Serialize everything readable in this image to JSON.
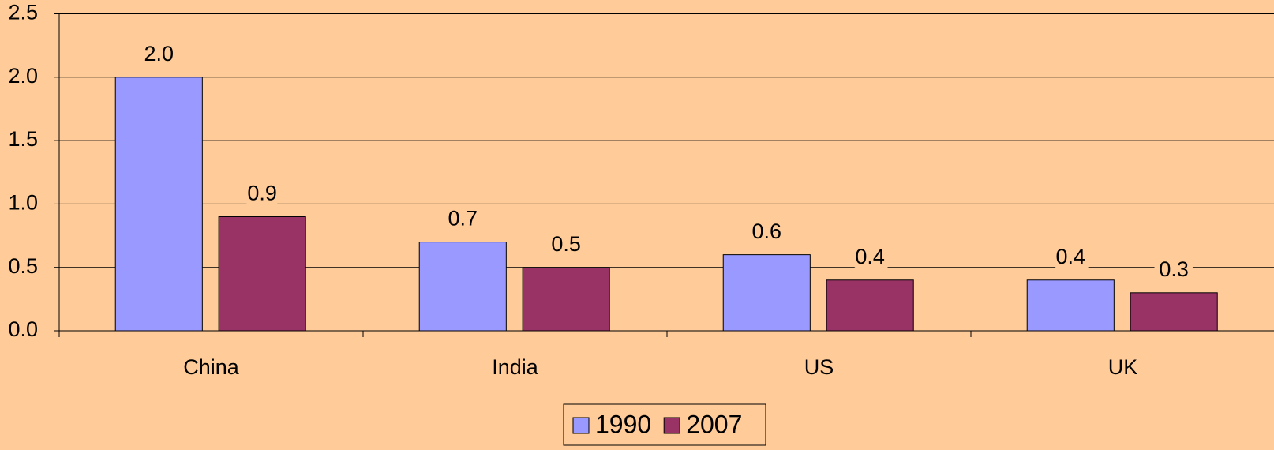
{
  "chart_data": {
    "type": "bar",
    "categories": [
      "China",
      "India",
      "US",
      "UK"
    ],
    "series": [
      {
        "name": "1990",
        "color": "#9999ff",
        "values": [
          2.0,
          0.7,
          0.6,
          0.4
        ],
        "value_labels": [
          "2.0",
          "0.7",
          "0.6",
          "0.4"
        ]
      },
      {
        "name": "2007",
        "color": "#993366",
        "values": [
          0.9,
          0.5,
          0.4,
          0.3
        ],
        "value_labels": [
          "0.9",
          "0.5",
          "0.4",
          "0.3"
        ]
      }
    ],
    "ylim": [
      0,
      2.5
    ],
    "yticks": [
      {
        "value": 0,
        "label": "0.0"
      },
      {
        "value": 0.5,
        "label": "0.5"
      },
      {
        "value": 1,
        "label": "1.0"
      },
      {
        "value": 1.5,
        "label": "1.5"
      },
      {
        "value": 2,
        "label": "2.0"
      },
      {
        "value": 2.5,
        "label": "2.5"
      }
    ],
    "grid": true,
    "legend": "bottom"
  }
}
